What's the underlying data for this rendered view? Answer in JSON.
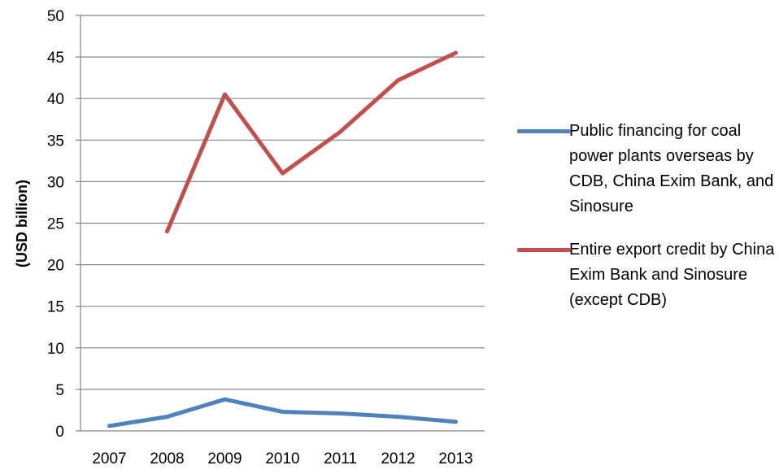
{
  "chart_data": {
    "type": "line",
    "title": "",
    "xlabel": "",
    "ylabel": "(USD billion)",
    "ylim": [
      0,
      50
    ],
    "yticks": [
      0,
      5,
      10,
      15,
      20,
      25,
      30,
      35,
      40,
      45,
      50
    ],
    "categories": [
      "2007",
      "2008",
      "2009",
      "2010",
      "2011",
      "2012",
      "2013"
    ],
    "grid": "horizontal",
    "legend_position": "right",
    "series": [
      {
        "name": "Public financing for coal power plants overseas by CDB, China Exim Bank, and Sinosure",
        "color": "#4f81bd",
        "values": [
          0.6,
          1.7,
          3.8,
          2.3,
          2.1,
          1.7,
          1.1
        ]
      },
      {
        "name": "Entire export credit by China Exim Bank and Sinosure (except CDB)",
        "color": "#c0504d",
        "values": [
          null,
          24,
          40.5,
          31,
          36,
          42.2,
          45.5
        ]
      }
    ]
  }
}
